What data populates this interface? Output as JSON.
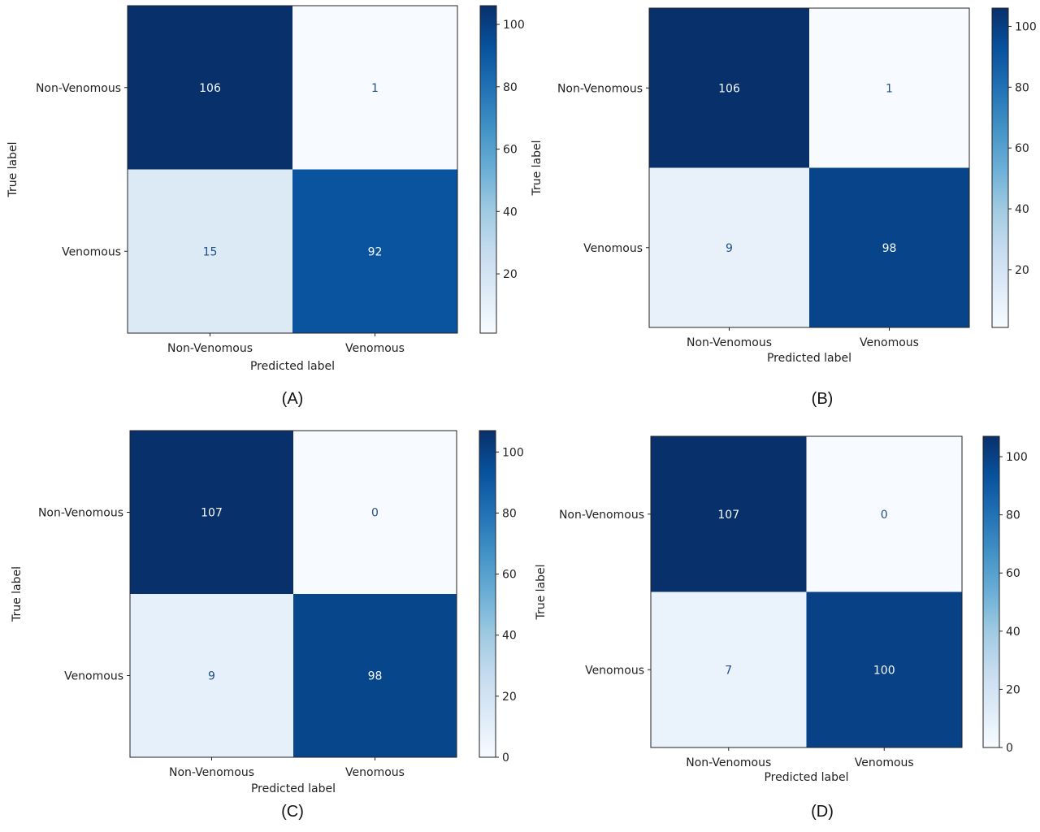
{
  "chart_data": [
    {
      "type": "heatmap",
      "caption": "(A)",
      "xlabel": "Predicted label",
      "ylabel": "True label",
      "x_categories": [
        "Non-Venomous",
        "Venomous"
      ],
      "y_categories": [
        "Non-Venomous",
        "Venomous"
      ],
      "matrix": [
        [
          106,
          1
        ],
        [
          15,
          92
        ]
      ],
      "colorbar_ticks": [
        20,
        40,
        60,
        80,
        100
      ],
      "colorbar_range": [
        1,
        106
      ],
      "colormap": "Blues"
    },
    {
      "type": "heatmap",
      "caption": "(B)",
      "xlabel": "Predicted label",
      "ylabel": "True label",
      "x_categories": [
        "Non-Venomous",
        "Venomous"
      ],
      "y_categories": [
        "Non-Venomous",
        "Venomous"
      ],
      "matrix": [
        [
          106,
          1
        ],
        [
          9,
          98
        ]
      ],
      "colorbar_ticks": [
        20,
        40,
        60,
        80,
        100
      ],
      "colorbar_range": [
        1,
        106
      ],
      "colormap": "Blues"
    },
    {
      "type": "heatmap",
      "caption": "(C)",
      "xlabel": "Predicted label",
      "ylabel": "True label",
      "x_categories": [
        "Non-Venomous",
        "Venomous"
      ],
      "y_categories": [
        "Non-Venomous",
        "Venomous"
      ],
      "matrix": [
        [
          107,
          0
        ],
        [
          9,
          98
        ]
      ],
      "colorbar_ticks": [
        0,
        20,
        40,
        60,
        80,
        100
      ],
      "colorbar_range": [
        0,
        107
      ],
      "colormap": "Blues"
    },
    {
      "type": "heatmap",
      "caption": "(D)",
      "xlabel": "Predicted label",
      "ylabel": "True label",
      "x_categories": [
        "Non-Venomous",
        "Venomous"
      ],
      "y_categories": [
        "Non-Venomous",
        "Venomous"
      ],
      "matrix": [
        [
          107,
          0
        ],
        [
          7,
          100
        ]
      ],
      "colorbar_ticks": [
        0,
        20,
        40,
        60,
        80,
        100
      ],
      "colorbar_range": [
        0,
        107
      ],
      "colormap": "Blues"
    }
  ]
}
